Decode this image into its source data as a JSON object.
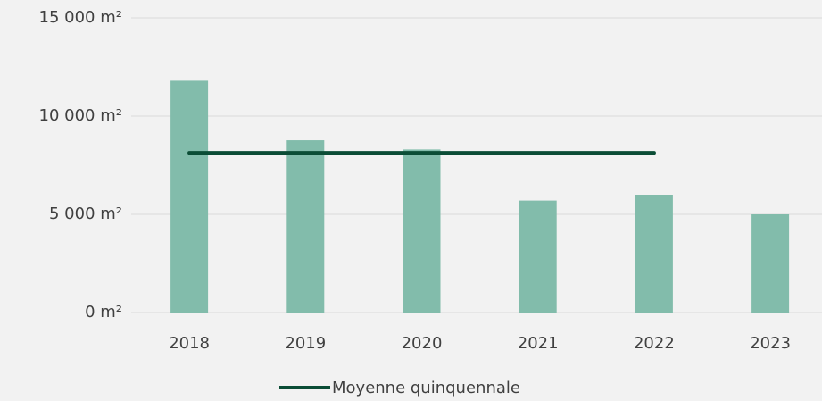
{
  "chart_data": {
    "type": "bar",
    "categories": [
      "2018",
      "2019",
      "2020",
      "2021",
      "2022",
      "2023"
    ],
    "values": [
      11800,
      8770,
      8300,
      5700,
      6000,
      5000
    ],
    "color": "#82bcab",
    "series": [
      {
        "name": "Moyenne quinquennale",
        "type": "line",
        "color": "#0b4d36",
        "values": [
          8130,
          8130,
          8130,
          8130,
          8130,
          null
        ]
      }
    ],
    "ylim": [
      0,
      15000
    ],
    "yticks": [
      {
        "value": 0,
        "label": "0 m²"
      },
      {
        "value": 5000,
        "label": "5 000 m²"
      },
      {
        "value": 10000,
        "label": "10 000 m²"
      },
      {
        "value": 15000,
        "label": "15 000 m²"
      }
    ],
    "grid": true,
    "legend": "bottom"
  }
}
